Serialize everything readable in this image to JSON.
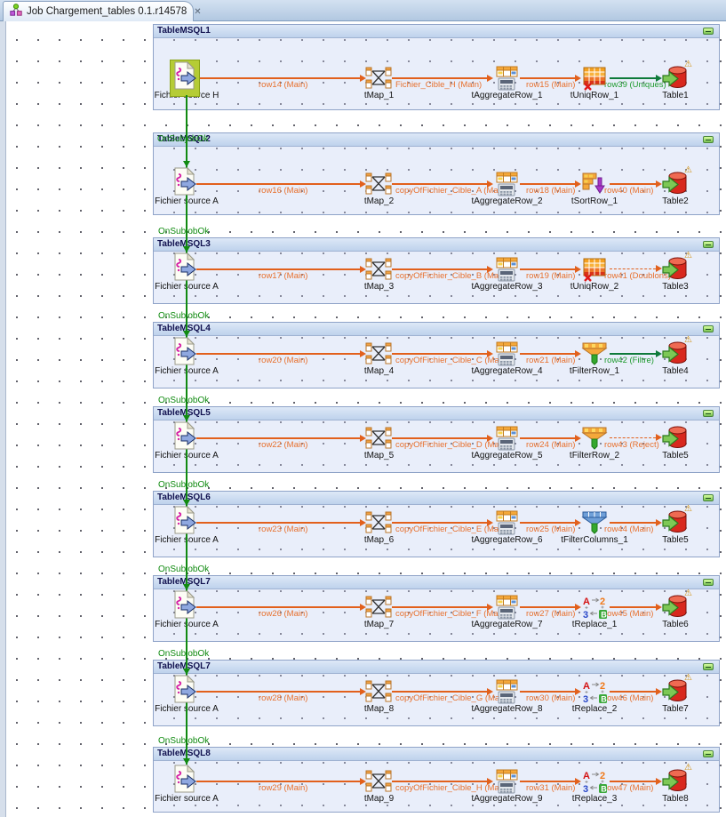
{
  "tab": {
    "title": "Job Chargement_tables 0.1.r14578",
    "close_glyph": "✕"
  },
  "icons": {
    "job_icon": "talend-job-icon",
    "warning_glyph": "⚠",
    "collapse_glyph": "−"
  },
  "colors": {
    "link_main": "#e2601c",
    "link_uniques_green": "#0e7a3a",
    "trigger_green": "#118a11",
    "subjob_header_text": "#10104e",
    "selected_highlight": "#b5cc35",
    "warning_amber": "#cf8a00"
  },
  "subjobs": [
    {
      "title": "TableMSQL1",
      "trigger_label": "",
      "components": {
        "source": {
          "label": "Fichier source H",
          "selected": true
        },
        "map": {
          "label": "tMap_1"
        },
        "aggregate": {
          "label": "tAggregateRow_1"
        },
        "fourth": {
          "label": "tUniqRow_1",
          "type": "uniqrow"
        },
        "output": {
          "label": "Table1",
          "warning": true
        }
      },
      "links": {
        "l1": {
          "label": "row14 (Main)",
          "style": "main"
        },
        "l2": {
          "label": "Fichier_Cible_H (Main)",
          "style": "main"
        },
        "l3": {
          "label": "row15 (Main)",
          "style": "main"
        },
        "l4": {
          "label": "row39 (Uniques)",
          "style": "green"
        }
      }
    },
    {
      "title": "TableMSQL2",
      "trigger_label": "OnSubjobOk",
      "components": {
        "source": {
          "label": "Fichier source A",
          "selected": false
        },
        "map": {
          "label": "tMap_2"
        },
        "aggregate": {
          "label": "tAggregateRow_2"
        },
        "fourth": {
          "label": "tSortRow_1",
          "type": "sortrow"
        },
        "output": {
          "label": "Table2",
          "warning": true
        }
      },
      "links": {
        "l1": {
          "label": "row16 (Main)",
          "style": "main"
        },
        "l2": {
          "label": "copyOfFichier_Cible_A (Main)",
          "style": "main"
        },
        "l3": {
          "label": "row18 (Main)",
          "style": "main"
        },
        "l4": {
          "label": "row40 (Main)",
          "style": "main"
        }
      }
    },
    {
      "title": "TableMSQL3",
      "trigger_label": "OnSubjobOk",
      "components": {
        "source": {
          "label": "Fichier source A",
          "selected": false
        },
        "map": {
          "label": "tMap_3"
        },
        "aggregate": {
          "label": "tAggregateRow_3"
        },
        "fourth": {
          "label": "tUniqRow_2",
          "type": "uniqrow"
        },
        "output": {
          "label": "Table3",
          "warning": true
        }
      },
      "links": {
        "l1": {
          "label": "row17 (Main)",
          "style": "main"
        },
        "l2": {
          "label": "copyOfFichier_Cible_B (Main)",
          "style": "main"
        },
        "l3": {
          "label": "row19 (Main)",
          "style": "main"
        },
        "l4": {
          "label": "row41 (Doublons)",
          "style": "dashed"
        }
      }
    },
    {
      "title": "TableMSQL4",
      "trigger_label": "OnSubjobOk",
      "components": {
        "source": {
          "label": "Fichier source A",
          "selected": false
        },
        "map": {
          "label": "tMap_4"
        },
        "aggregate": {
          "label": "tAggregateRow_4"
        },
        "fourth": {
          "label": "tFilterRow_1",
          "type": "filterrow"
        },
        "output": {
          "label": "Table4",
          "warning": true
        }
      },
      "links": {
        "l1": {
          "label": "row20 (Main)",
          "style": "main"
        },
        "l2": {
          "label": "copyOfFichier_Cible_C (Main)",
          "style": "main"
        },
        "l3": {
          "label": "row21 (Main)",
          "style": "main"
        },
        "l4": {
          "label": "row42 (Filtre)",
          "style": "green"
        }
      }
    },
    {
      "title": "TableMSQL5",
      "trigger_label": "OnSubjobOk",
      "components": {
        "source": {
          "label": "Fichier source A",
          "selected": false
        },
        "map": {
          "label": "tMap_5"
        },
        "aggregate": {
          "label": "tAggregateRow_5"
        },
        "fourth": {
          "label": "tFilterRow_2",
          "type": "filterrow"
        },
        "output": {
          "label": "Table5",
          "warning": false
        }
      },
      "links": {
        "l1": {
          "label": "row22 (Main)",
          "style": "main"
        },
        "l2": {
          "label": "copyOfFichier_Cible_D (Main)",
          "style": "main"
        },
        "l3": {
          "label": "row24 (Main)",
          "style": "main"
        },
        "l4": {
          "label": "row43 (Reject)",
          "style": "dashed"
        }
      }
    },
    {
      "title": "TableMSQL6",
      "trigger_label": "OnSubjobOk",
      "components": {
        "source": {
          "label": "Fichier source A",
          "selected": false
        },
        "map": {
          "label": "tMap_6"
        },
        "aggregate": {
          "label": "tAggregateRow_6"
        },
        "fourth": {
          "label": "tFilterColumns_1",
          "type": "filtercols"
        },
        "output": {
          "label": "Table5",
          "warning": true
        }
      },
      "links": {
        "l1": {
          "label": "row23 (Main)",
          "style": "main"
        },
        "l2": {
          "label": "copyOfFichier_Cible_E (Main)",
          "style": "main"
        },
        "l3": {
          "label": "row25 (Main)",
          "style": "main"
        },
        "l4": {
          "label": "row44 (Main)",
          "style": "main"
        }
      }
    },
    {
      "title": "TableMSQL7",
      "trigger_label": "OnSubjobOk",
      "components": {
        "source": {
          "label": "Fichier source A",
          "selected": false
        },
        "map": {
          "label": "tMap_7"
        },
        "aggregate": {
          "label": "tAggregateRow_7"
        },
        "fourth": {
          "label": "tReplace_1",
          "type": "replace"
        },
        "output": {
          "label": "Table6",
          "warning": true
        }
      },
      "links": {
        "l1": {
          "label": "row26 (Main)",
          "style": "main"
        },
        "l2": {
          "label": "copyOfFichier_Cible_F (Main)",
          "style": "main"
        },
        "l3": {
          "label": "row27 (Main)",
          "style": "main"
        },
        "l4": {
          "label": "row45 (Main)",
          "style": "main"
        }
      }
    },
    {
      "title": "TableMSQL7",
      "trigger_label": "OnSubjobOk",
      "components": {
        "source": {
          "label": "Fichier source A",
          "selected": false
        },
        "map": {
          "label": "tMap_8"
        },
        "aggregate": {
          "label": "tAggregateRow_8"
        },
        "fourth": {
          "label": "tReplace_2",
          "type": "replace"
        },
        "output": {
          "label": "Table7",
          "warning": true
        }
      },
      "links": {
        "l1": {
          "label": "row28 (Main)",
          "style": "main"
        },
        "l2": {
          "label": "copyOfFichier_Cible_G (Main)",
          "style": "main"
        },
        "l3": {
          "label": "row30 (Main)",
          "style": "main"
        },
        "l4": {
          "label": "row46 (Main)",
          "style": "main"
        }
      }
    },
    {
      "title": "TableMSQL8",
      "trigger_label": "OnSubjobOk",
      "components": {
        "source": {
          "label": "Fichier source A",
          "selected": false
        },
        "map": {
          "label": "tMap_9"
        },
        "aggregate": {
          "label": "tAggregateRow_9"
        },
        "fourth": {
          "label": "tReplace_3",
          "type": "replace"
        },
        "output": {
          "label": "Table8",
          "warning": true
        }
      },
      "links": {
        "l1": {
          "label": "row29 (Main)",
          "style": "main"
        },
        "l2": {
          "label": "copyOfFichier_Cible_H (Main)",
          "style": "main"
        },
        "l3": {
          "label": "row31 (Main)",
          "style": "main"
        },
        "l4": {
          "label": "row47 (Main)",
          "style": "main"
        }
      }
    }
  ]
}
